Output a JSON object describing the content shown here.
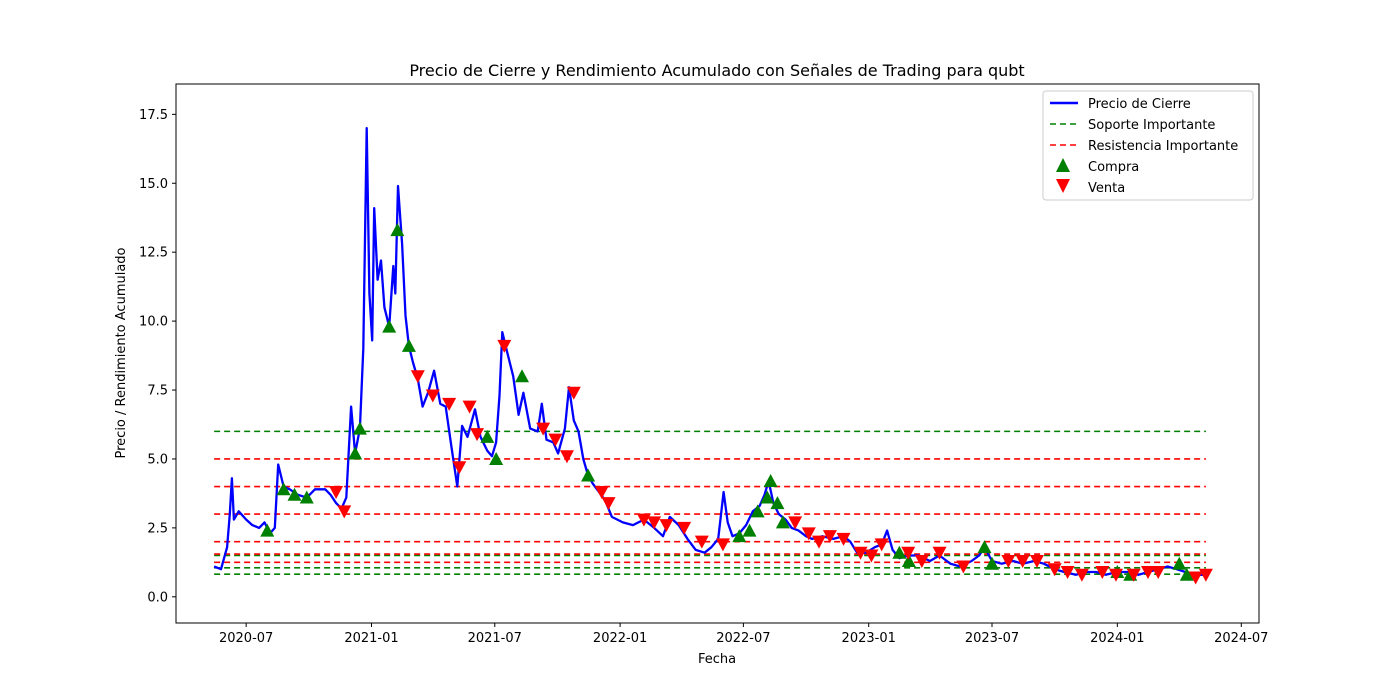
{
  "chart_data": {
    "type": "line",
    "title": "Precio de Cierre y Rendimiento Acumulado con Señales de Trading para qubt",
    "xlabel": "Fecha",
    "ylabel": "Precio / Rendimiento Acumulado",
    "xlim": [
      "2020-03-20",
      "2024-07-27"
    ],
    "ylim": [
      -0.95,
      18.6
    ],
    "x_ticks": [
      "2020-07",
      "2021-01",
      "2021-07",
      "2022-01",
      "2022-07",
      "2023-01",
      "2023-07",
      "2024-01",
      "2024-07"
    ],
    "y_ticks": [
      "0.0",
      "2.5",
      "5.0",
      "7.5",
      "10.0",
      "12.5",
      "15.0",
      "17.5"
    ],
    "grid": false,
    "legend_position": "top-right",
    "legend": [
      "Precio de Cierre",
      "Soporte Importante",
      "Resistencia Importante",
      "Compra",
      "Venta"
    ],
    "series": [
      {
        "name": "Precio de Cierre",
        "color": "#0000ff",
        "points": [
          [
            "2020-05-15",
            1.1
          ],
          [
            "2020-05-25",
            1.0
          ],
          [
            "2020-06-03",
            1.8
          ],
          [
            "2020-06-07",
            3.0
          ],
          [
            "2020-06-10",
            4.3
          ],
          [
            "2020-06-13",
            2.8
          ],
          [
            "2020-06-20",
            3.1
          ],
          [
            "2020-07-01",
            2.8
          ],
          [
            "2020-07-10",
            2.6
          ],
          [
            "2020-07-20",
            2.5
          ],
          [
            "2020-07-28",
            2.7
          ],
          [
            "2020-08-05",
            2.3
          ],
          [
            "2020-08-12",
            2.5
          ],
          [
            "2020-08-17",
            4.8
          ],
          [
            "2020-08-25",
            4.0
          ],
          [
            "2020-09-03",
            3.9
          ],
          [
            "2020-09-15",
            3.7
          ],
          [
            "2020-09-28",
            3.6
          ],
          [
            "2020-10-10",
            3.9
          ],
          [
            "2020-10-25",
            3.9
          ],
          [
            "2020-11-02",
            3.7
          ],
          [
            "2020-11-10",
            3.4
          ],
          [
            "2020-11-18",
            3.2
          ],
          [
            "2020-11-25",
            3.6
          ],
          [
            "2020-12-02",
            6.9
          ],
          [
            "2020-12-08",
            5.2
          ],
          [
            "2020-12-15",
            6.1
          ],
          [
            "2020-12-20",
            9.0
          ],
          [
            "2020-12-25",
            17.0
          ],
          [
            "2020-12-29",
            11.0
          ],
          [
            "2021-01-02",
            9.3
          ],
          [
            "2021-01-05",
            14.1
          ],
          [
            "2021-01-10",
            11.5
          ],
          [
            "2021-01-15",
            12.2
          ],
          [
            "2021-01-20",
            10.5
          ],
          [
            "2021-01-27",
            9.8
          ],
          [
            "2021-02-02",
            12.0
          ],
          [
            "2021-02-05",
            11.0
          ],
          [
            "2021-02-09",
            14.9
          ],
          [
            "2021-02-15",
            12.8
          ],
          [
            "2021-02-20",
            10.2
          ],
          [
            "2021-02-25",
            9.1
          ],
          [
            "2021-03-03",
            8.5
          ],
          [
            "2021-03-10",
            7.9
          ],
          [
            "2021-03-17",
            6.9
          ],
          [
            "2021-03-25",
            7.4
          ],
          [
            "2021-04-03",
            8.2
          ],
          [
            "2021-04-12",
            7.0
          ],
          [
            "2021-04-20",
            6.9
          ],
          [
            "2021-04-28",
            5.5
          ],
          [
            "2021-05-07",
            4.0
          ],
          [
            "2021-05-14",
            6.2
          ],
          [
            "2021-05-22",
            5.8
          ],
          [
            "2021-06-02",
            6.8
          ],
          [
            "2021-06-10",
            5.8
          ],
          [
            "2021-06-20",
            5.3
          ],
          [
            "2021-06-27",
            5.1
          ],
          [
            "2021-07-03",
            5.6
          ],
          [
            "2021-07-08",
            7.3
          ],
          [
            "2021-07-12",
            9.6
          ],
          [
            "2021-07-18",
            9.0
          ],
          [
            "2021-07-28",
            8.0
          ],
          [
            "2021-08-05",
            6.6
          ],
          [
            "2021-08-12",
            7.4
          ],
          [
            "2021-08-22",
            6.1
          ],
          [
            "2021-09-02",
            6.0
          ],
          [
            "2021-09-08",
            7.0
          ],
          [
            "2021-09-15",
            5.7
          ],
          [
            "2021-09-25",
            5.6
          ],
          [
            "2021-10-02",
            5.2
          ],
          [
            "2021-10-12",
            6.1
          ],
          [
            "2021-10-18",
            7.6
          ],
          [
            "2021-10-25",
            6.4
          ],
          [
            "2021-11-01",
            6.0
          ],
          [
            "2021-11-08",
            5.0
          ],
          [
            "2021-11-15",
            4.4
          ],
          [
            "2021-11-22",
            4.1
          ],
          [
            "2021-12-01",
            3.8
          ],
          [
            "2021-12-10",
            3.5
          ],
          [
            "2021-12-20",
            2.9
          ],
          [
            "2022-01-05",
            2.7
          ],
          [
            "2022-01-20",
            2.6
          ],
          [
            "2022-02-05",
            2.8
          ],
          [
            "2022-02-20",
            2.5
          ],
          [
            "2022-03-05",
            2.2
          ],
          [
            "2022-03-15",
            2.9
          ],
          [
            "2022-03-28",
            2.6
          ],
          [
            "2022-04-10",
            2.1
          ],
          [
            "2022-04-22",
            1.7
          ],
          [
            "2022-05-05",
            1.6
          ],
          [
            "2022-05-15",
            1.8
          ],
          [
            "2022-05-25",
            2.1
          ],
          [
            "2022-06-02",
            3.8
          ],
          [
            "2022-06-08",
            2.7
          ],
          [
            "2022-06-15",
            2.2
          ],
          [
            "2022-06-25",
            2.3
          ],
          [
            "2022-07-05",
            2.6
          ],
          [
            "2022-07-15",
            3.1
          ],
          [
            "2022-07-25",
            3.3
          ],
          [
            "2022-08-01",
            3.7
          ],
          [
            "2022-08-07",
            4.2
          ],
          [
            "2022-08-14",
            3.4
          ],
          [
            "2022-08-22",
            3.0
          ],
          [
            "2022-09-01",
            2.8
          ],
          [
            "2022-09-10",
            2.5
          ],
          [
            "2022-09-20",
            2.4
          ],
          [
            "2022-10-01",
            2.2
          ],
          [
            "2022-10-10",
            2.1
          ],
          [
            "2022-10-25",
            2.2
          ],
          [
            "2022-11-10",
            2.1
          ],
          [
            "2022-11-25",
            2.2
          ],
          [
            "2022-12-05",
            2.0
          ],
          [
            "2022-12-15",
            1.6
          ],
          [
            "2022-12-28",
            1.6
          ],
          [
            "2023-01-10",
            1.8
          ],
          [
            "2023-01-20",
            1.9
          ],
          [
            "2023-01-28",
            2.4
          ],
          [
            "2023-02-05",
            1.7
          ],
          [
            "2023-02-15",
            1.4
          ],
          [
            "2023-03-01",
            1.5
          ],
          [
            "2023-03-15",
            1.5
          ],
          [
            "2023-04-01",
            1.3
          ],
          [
            "2023-04-15",
            1.5
          ],
          [
            "2023-05-01",
            1.2
          ],
          [
            "2023-05-15",
            1.1
          ],
          [
            "2023-06-01",
            1.3
          ],
          [
            "2023-06-12",
            1.5
          ],
          [
            "2023-06-20",
            1.8
          ],
          [
            "2023-07-01",
            1.3
          ],
          [
            "2023-07-15",
            1.2
          ],
          [
            "2023-08-01",
            1.3
          ],
          [
            "2023-08-15",
            1.2
          ],
          [
            "2023-09-01",
            1.3
          ],
          [
            "2023-09-15",
            1.2
          ],
          [
            "2023-10-01",
            1.0
          ],
          [
            "2023-10-15",
            0.9
          ],
          [
            "2023-11-01",
            0.8
          ],
          [
            "2023-11-15",
            0.9
          ],
          [
            "2023-12-01",
            0.9
          ],
          [
            "2023-12-15",
            0.8
          ],
          [
            "2024-01-01",
            0.9
          ],
          [
            "2024-01-15",
            0.9
          ],
          [
            "2024-02-01",
            0.8
          ],
          [
            "2024-02-15",
            0.9
          ],
          [
            "2024-03-01",
            1.0
          ],
          [
            "2024-03-15",
            1.1
          ],
          [
            "2024-03-28",
            1.0
          ],
          [
            "2024-04-10",
            0.9
          ],
          [
            "2024-04-20",
            0.8
          ],
          [
            "2024-04-30",
            0.8
          ],
          [
            "2024-05-10",
            0.8
          ]
        ]
      }
    ],
    "support_levels": [
      0.82,
      1.05,
      1.5,
      6.0
    ],
    "resistance_levels": [
      1.25,
      1.55,
      2.0,
      3.0,
      4.0,
      5.0
    ],
    "support_color": "#008000",
    "resistance_color": "#ff0000",
    "line_range": [
      "2020-05-15",
      "2024-05-10"
    ],
    "buy_signals": [
      [
        "2020-08-01",
        2.4
      ],
      [
        "2020-08-25",
        3.9
      ],
      [
        "2020-09-10",
        3.7
      ],
      [
        "2020-09-28",
        3.6
      ],
      [
        "2020-12-08",
        5.2
      ],
      [
        "2020-12-15",
        6.1
      ],
      [
        "2021-01-27",
        9.8
      ],
      [
        "2021-02-08",
        13.3
      ],
      [
        "2021-02-25",
        9.1
      ],
      [
        "2021-06-20",
        5.8
      ],
      [
        "2021-07-03",
        5.0
      ],
      [
        "2021-08-10",
        8.0
      ],
      [
        "2021-11-15",
        4.4
      ],
      [
        "2022-06-25",
        2.2
      ],
      [
        "2022-07-10",
        2.4
      ],
      [
        "2022-07-22",
        3.1
      ],
      [
        "2022-08-05",
        3.6
      ],
      [
        "2022-08-10",
        4.2
      ],
      [
        "2022-08-20",
        3.4
      ],
      [
        "2022-08-28",
        2.7
      ],
      [
        "2023-02-15",
        1.6
      ],
      [
        "2023-03-01",
        1.3
      ],
      [
        "2023-06-20",
        1.8
      ],
      [
        "2023-07-01",
        1.2
      ],
      [
        "2024-01-01",
        0.9
      ],
      [
        "2024-01-20",
        0.8
      ],
      [
        "2024-04-01",
        1.2
      ],
      [
        "2024-04-12",
        0.8
      ]
    ],
    "sell_signals": [
      [
        "2020-11-10",
        3.8
      ],
      [
        "2020-11-22",
        3.1
      ],
      [
        "2021-03-10",
        8.0
      ],
      [
        "2021-04-01",
        7.3
      ],
      [
        "2021-04-25",
        7.0
      ],
      [
        "2021-05-10",
        4.7
      ],
      [
        "2021-05-25",
        6.9
      ],
      [
        "2021-06-05",
        5.9
      ],
      [
        "2021-07-15",
        9.1
      ],
      [
        "2021-09-10",
        6.1
      ],
      [
        "2021-09-28",
        5.7
      ],
      [
        "2021-10-15",
        5.1
      ],
      [
        "2021-10-25",
        7.4
      ],
      [
        "2021-12-05",
        3.8
      ],
      [
        "2021-12-15",
        3.4
      ],
      [
        "2022-02-05",
        2.8
      ],
      [
        "2022-02-20",
        2.7
      ],
      [
        "2022-03-10",
        2.6
      ],
      [
        "2022-04-05",
        2.5
      ],
      [
        "2022-05-01",
        2.0
      ],
      [
        "2022-06-01",
        1.9
      ],
      [
        "2022-09-15",
        2.7
      ],
      [
        "2022-10-05",
        2.3
      ],
      [
        "2022-10-20",
        2.0
      ],
      [
        "2022-11-05",
        2.2
      ],
      [
        "2022-11-25",
        2.1
      ],
      [
        "2022-12-20",
        1.6
      ],
      [
        "2023-01-05",
        1.5
      ],
      [
        "2023-01-20",
        1.9
      ],
      [
        "2023-02-28",
        1.6
      ],
      [
        "2023-03-20",
        1.3
      ],
      [
        "2023-04-15",
        1.6
      ],
      [
        "2023-05-20",
        1.1
      ],
      [
        "2023-07-25",
        1.3
      ],
      [
        "2023-08-15",
        1.3
      ],
      [
        "2023-09-05",
        1.3
      ],
      [
        "2023-10-01",
        1.0
      ],
      [
        "2023-10-20",
        0.9
      ],
      [
        "2023-11-10",
        0.8
      ],
      [
        "2023-12-10",
        0.9
      ],
      [
        "2023-12-30",
        0.8
      ],
      [
        "2024-01-25",
        0.8
      ],
      [
        "2024-02-15",
        0.9
      ],
      [
        "2024-03-01",
        0.9
      ],
      [
        "2024-04-25",
        0.7
      ],
      [
        "2024-05-10",
        0.8
      ]
    ]
  }
}
